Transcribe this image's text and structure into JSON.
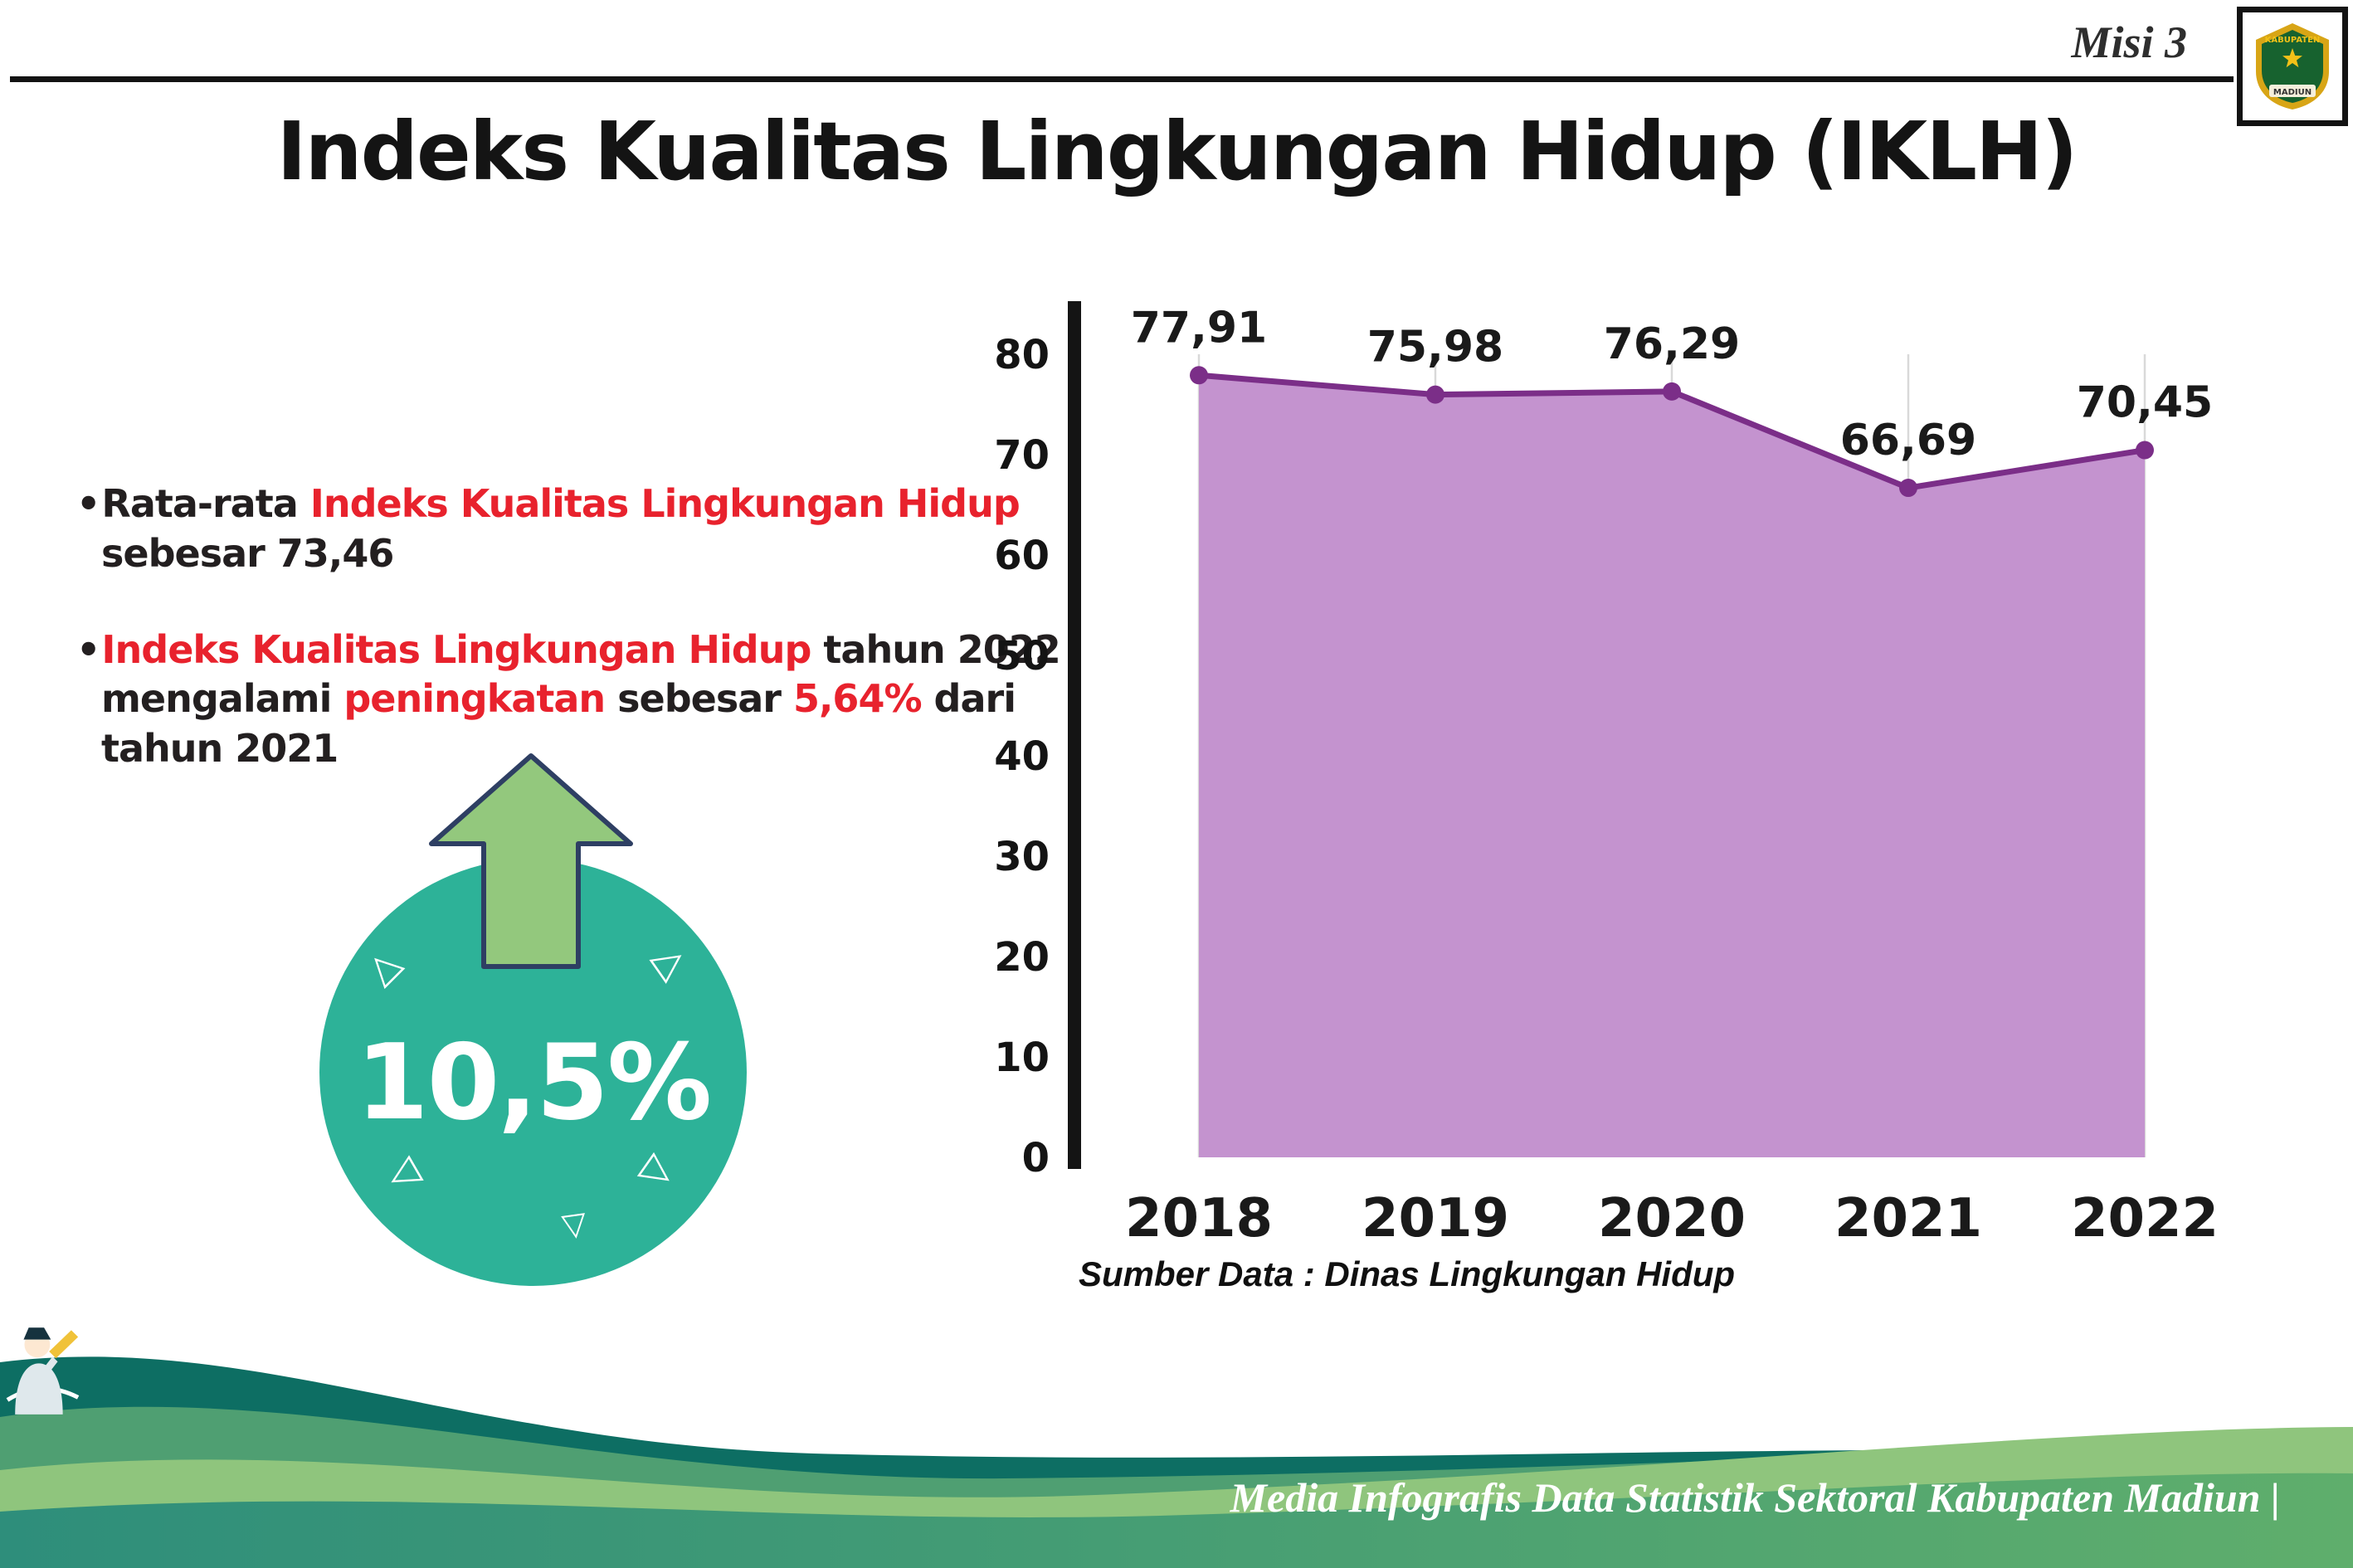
{
  "header": {
    "misi_label": "Misi 3",
    "title": "Indeks Kualitas Lingkungan Hidup (IKLH)",
    "logo": {
      "kabupaten": "KABUPATEN",
      "madiun": "MADIUN"
    }
  },
  "palette": {
    "dark": "#231f20",
    "red": "#e8222d"
  },
  "bullets": [
    {
      "marker": "•",
      "lines": [
        [
          {
            "t": "Rata-rata ",
            "c": "dark"
          },
          {
            "t": "Indeks Kualitas Lingkungan Hidup",
            "c": "red"
          }
        ],
        [
          {
            "t": "sebesar 73,46",
            "c": "dark"
          }
        ]
      ]
    },
    {
      "marker": "•",
      "lines": [
        [
          {
            "t": "Indeks Kualitas Lingkungan Hidup",
            "c": "red"
          },
          {
            "t": " tahun 2022",
            "c": "dark"
          }
        ],
        [
          {
            "t": "mengalami ",
            "c": "dark"
          },
          {
            "t": "peningkatan",
            "c": "red"
          },
          {
            "t": " sebesar ",
            "c": "dark"
          },
          {
            "t": "5,64%",
            "c": "red"
          },
          {
            "t": " dari",
            "c": "dark"
          }
        ],
        [
          {
            "t": "tahun 2021",
            "c": "dark"
          }
        ]
      ]
    }
  ],
  "badge": {
    "value": "10,5%",
    "tick_glyph": "▷",
    "circle_color": "#2db298",
    "arrow_color": "#93c87d",
    "arrow_outline": "#2e3f63"
  },
  "chart_data": {
    "type": "area",
    "title": "",
    "categories": [
      "2018",
      "2019",
      "2020",
      "2021",
      "2022"
    ],
    "values": [
      77.91,
      75.98,
      76.29,
      66.69,
      70.45
    ],
    "value_labels": [
      "77,91",
      "75,98",
      "76,29",
      "66,69",
      "70,45"
    ],
    "ylim": [
      0,
      80
    ],
    "y_ticks": [
      0,
      10,
      20,
      30,
      40,
      50,
      60,
      70,
      80
    ],
    "grid": "vertical-light",
    "line_color": "#7b2e88",
    "fill_color": "#c493cf",
    "axis_color": "#141414",
    "grid_color": "#d9d9d9",
    "source": "Sumber Data : Dinas Lingkungan Hidup"
  },
  "footer": {
    "text": "Media Infografis Data Statistik Sektoral Kabupaten Madiun |",
    "wave_colors": [
      "#0d6e63",
      "#4f9f72",
      "#8fc57d"
    ],
    "band_gradient": [
      "#2e8e7b",
      "#5fae6c"
    ]
  }
}
